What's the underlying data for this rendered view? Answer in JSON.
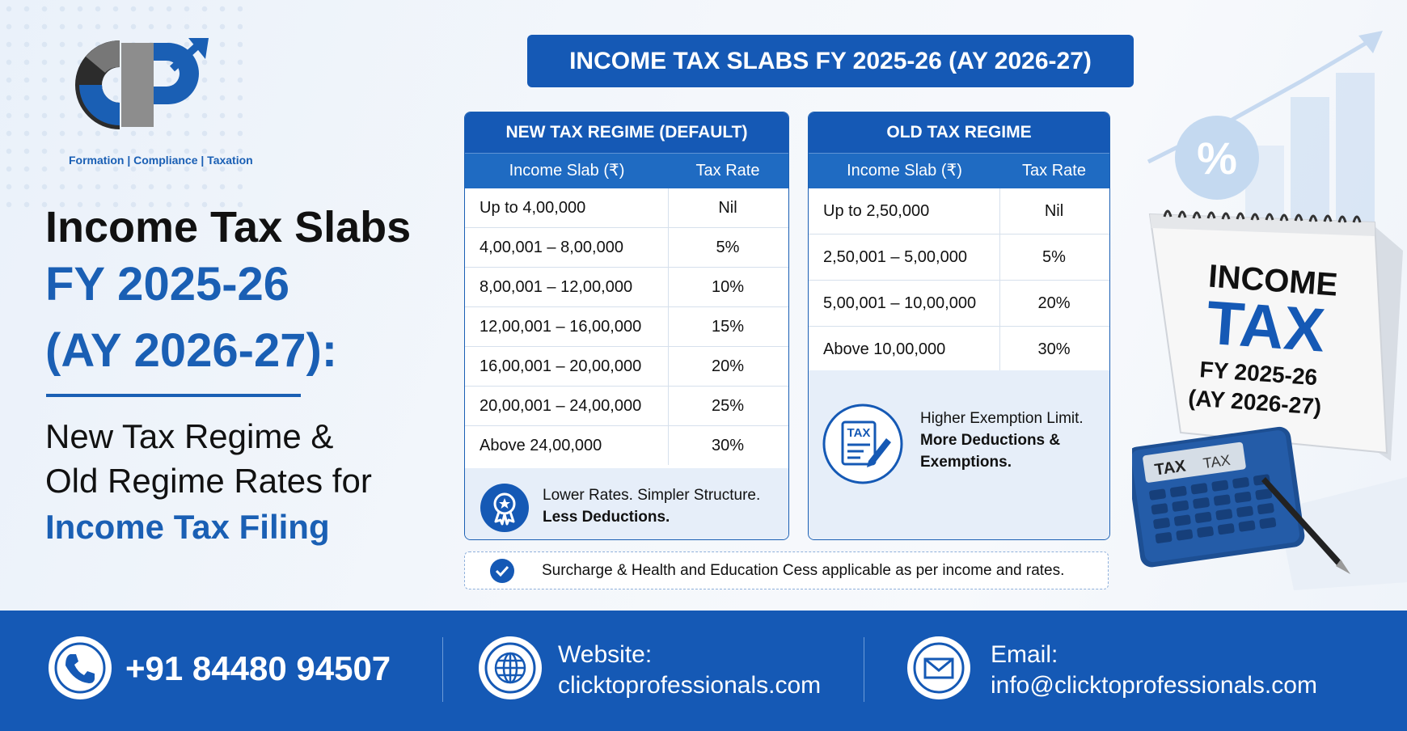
{
  "brand": {
    "logo_letters": "CP",
    "tagline": "Formation | Compliance | Taxation"
  },
  "heading": {
    "line1": "Income Tax Slabs",
    "line2": "FY 2025-26",
    "line3": "(AY 2026-27):",
    "sub1": "New Tax Regime &",
    "sub2": "Old Regime Rates for",
    "sub3": "Income Tax Filing"
  },
  "main_title": "INCOME TAX SLABS FY 2025-26 (AY 2026-27)",
  "new_regime": {
    "title": "NEW TAX REGIME (DEFAULT)",
    "col1": "Income Slab (₹)",
    "col2": "Tax Rate",
    "rows": [
      {
        "slab": "Up to 4,00,000",
        "rate": "Nil"
      },
      {
        "slab": "4,00,001 – 8,00,000",
        "rate": "5%"
      },
      {
        "slab": "8,00,001 – 12,00,000",
        "rate": "10%"
      },
      {
        "slab": "12,00,001 – 16,00,000",
        "rate": "15%"
      },
      {
        "slab": "16,00,001 – 20,00,000",
        "rate": "20%"
      },
      {
        "slab": "20,00,001 – 24,00,000",
        "rate": "25%"
      },
      {
        "slab": "Above 24,00,000",
        "rate": "30%"
      }
    ],
    "footer_line1": "Lower Rates. Simpler Structure.",
    "footer_line2": "Less Deductions.",
    "footer_icon": "award-badge-icon"
  },
  "old_regime": {
    "title": "OLD TAX REGIME",
    "col1": "Income Slab (₹)",
    "col2": "Tax Rate",
    "rows": [
      {
        "slab": "Up to 2,50,000",
        "rate": "Nil"
      },
      {
        "slab": "2,50,001 – 5,00,000",
        "rate": "5%"
      },
      {
        "slab": "5,00,001 – 10,00,000",
        "rate": "20%"
      },
      {
        "slab": "Above 10,00,000",
        "rate": "30%"
      }
    ],
    "footer_line1": "Higher Exemption Limit.",
    "footer_line2": "More Deductions &",
    "footer_line3": "Exemptions.",
    "footer_icon": "tax-document-icon",
    "footer_icon_text": "TAX"
  },
  "note": "Surcharge & Health and Education Cess applicable as per income and rates.",
  "illustration": {
    "calendar_line1": "INCOME",
    "calendar_line2": "TAX",
    "calendar_line3": "FY 2025-26",
    "calendar_line4": "(AY 2026-27)",
    "percent_symbol": "%",
    "calculator_label": "TAX",
    "calculator_display": "TAX"
  },
  "footer": {
    "phone": "+91 84480 94507",
    "website_label": "Website:",
    "website": "clicktoprofessionals.com",
    "email_label": "Email:",
    "email": "info@clicktoprofessionals.com"
  },
  "colors": {
    "primary": "#1559b5",
    "dark": "#111111",
    "panel_footer": "#e6eef9"
  }
}
